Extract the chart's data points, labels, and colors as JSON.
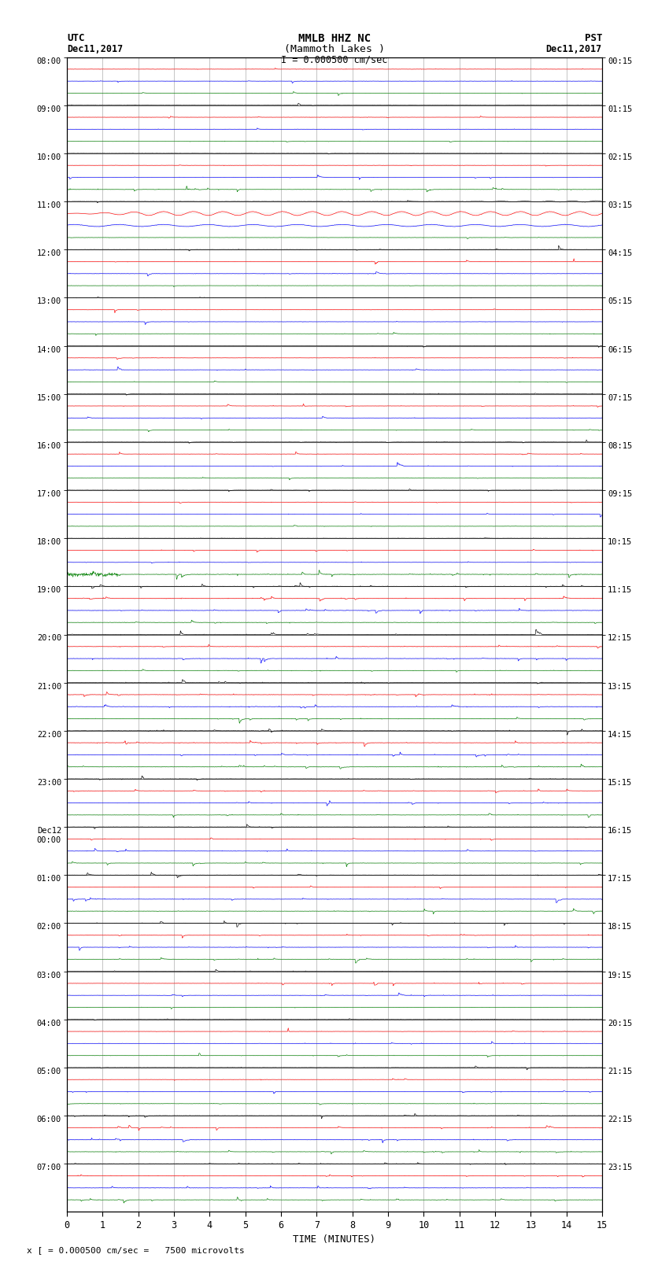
{
  "title_line1": "MMLB HHZ NC",
  "title_line2": "(Mammoth Lakes )",
  "title_line3": "I = 0.000500 cm/sec",
  "left_header_line1": "UTC",
  "left_header_line2": "Dec11,2017",
  "right_header_line1": "PST",
  "right_header_line2": "Dec11,2017",
  "xlabel": "TIME (MINUTES)",
  "footer": "x [ = 0.000500 cm/sec =   7500 microvolts",
  "hour_labels_utc": [
    "08:00",
    "09:00",
    "10:00",
    "11:00",
    "12:00",
    "13:00",
    "14:00",
    "15:00",
    "16:00",
    "17:00",
    "18:00",
    "19:00",
    "20:00",
    "21:00",
    "22:00",
    "23:00",
    "Dec12\n00:00",
    "01:00",
    "02:00",
    "03:00",
    "04:00",
    "05:00",
    "06:00",
    "07:00"
  ],
  "hour_labels_pst": [
    "00:15",
    "01:15",
    "02:15",
    "03:15",
    "04:15",
    "05:15",
    "06:15",
    "07:15",
    "08:15",
    "09:15",
    "10:15",
    "11:15",
    "12:15",
    "13:15",
    "14:15",
    "15:15",
    "16:15",
    "17:15",
    "18:15",
    "19:15",
    "20:15",
    "21:15",
    "22:15",
    "23:15"
  ],
  "trace_colors": [
    "black",
    "red",
    "blue",
    "green"
  ],
  "num_rows": 96,
  "traces_per_hour": 4,
  "time_min": 0,
  "time_max": 15,
  "background_color": "white",
  "grid_color": "#999999",
  "hour_line_color": "#666666",
  "seed": 42
}
